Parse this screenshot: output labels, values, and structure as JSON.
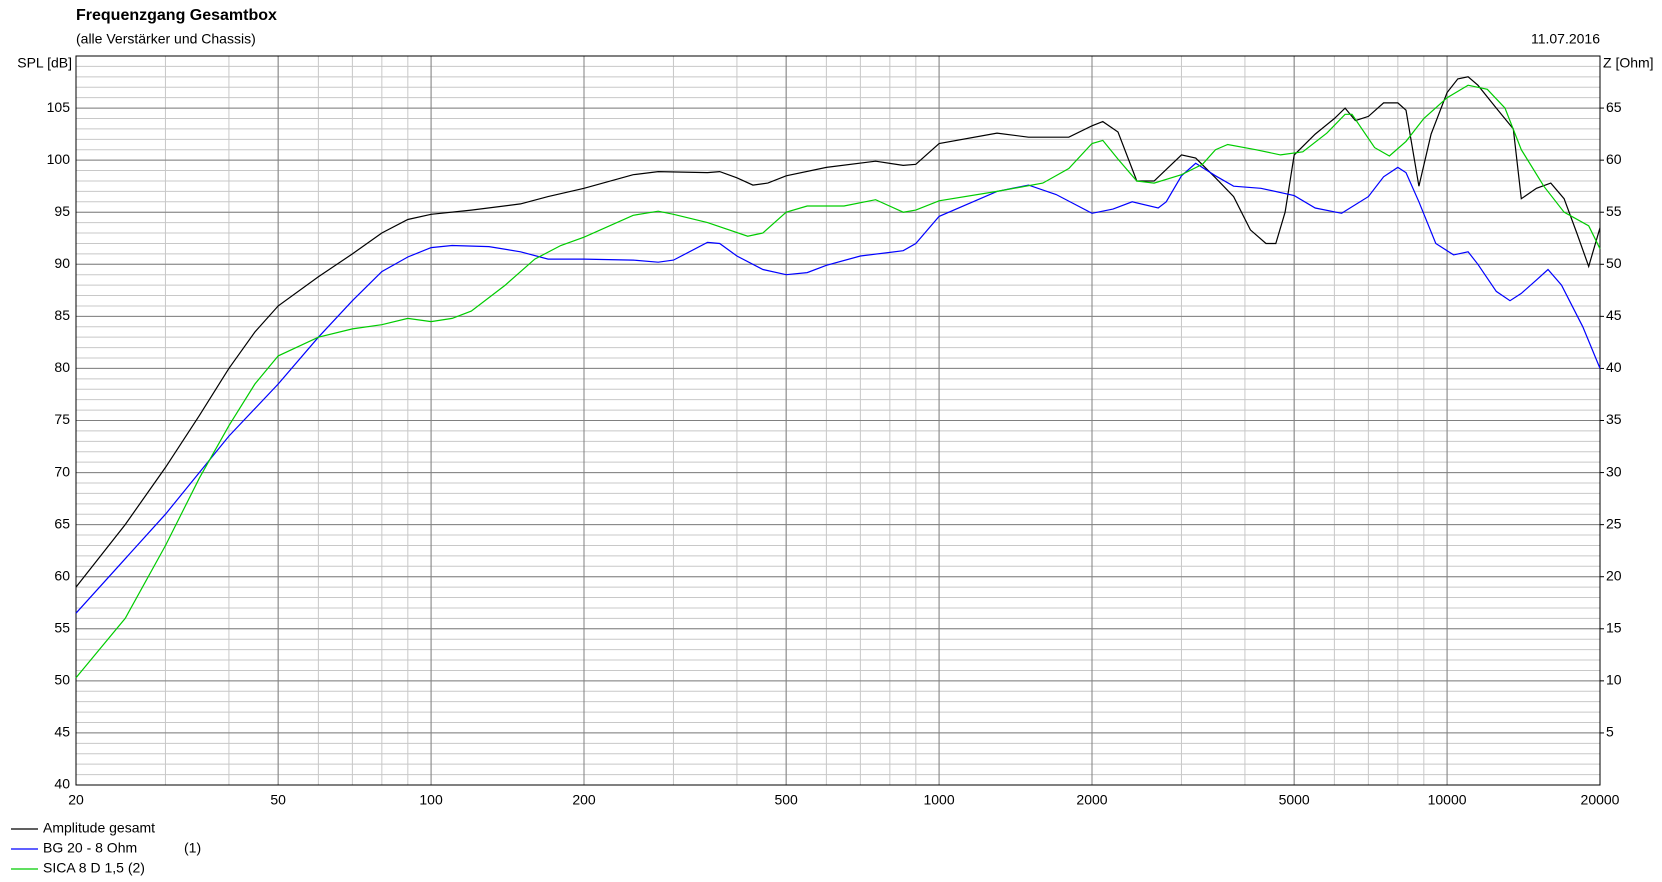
{
  "chart_data": {
    "type": "line",
    "title": "Frequenzgang Gesamtbox",
    "subtitle": "(alle Verstärker und Chassis)",
    "date": "11.07.2016",
    "y_label": "SPL [dB]",
    "y2_label": "Z [Ohm]",
    "log_x": true,
    "grid": true,
    "xlim": [
      20,
      20000
    ],
    "xticks": [
      20,
      50,
      100,
      200,
      500,
      1000,
      2000,
      5000,
      10000,
      20000
    ],
    "ylim": [
      40,
      110
    ],
    "yticks": [
      40,
      45,
      50,
      55,
      60,
      65,
      70,
      75,
      80,
      85,
      90,
      95,
      100,
      105
    ],
    "y2lim": [
      0,
      70
    ],
    "y2ticks": [
      5,
      10,
      15,
      20,
      25,
      30,
      35,
      40,
      45,
      50,
      55,
      60,
      65
    ],
    "series": [
      {
        "name": "Amplitude gesamt",
        "color": "#000000",
        "x": [
          20,
          25,
          30,
          35,
          40,
          45,
          50,
          60,
          70,
          80,
          90,
          100,
          120,
          150,
          170,
          200,
          250,
          280,
          350,
          370,
          400,
          430,
          460,
          500,
          600,
          750,
          850,
          900,
          1000,
          1300,
          1500,
          1800,
          2000,
          2100,
          2250,
          2450,
          2650,
          3000,
          3200,
          3500,
          3800,
          4100,
          4400,
          4600,
          4800,
          5000,
          5500,
          6000,
          6300,
          6600,
          7000,
          7500,
          8000,
          8300,
          8800,
          9300,
          10000,
          10500,
          11000,
          11500,
          12500,
          13500,
          14000,
          15000,
          16000,
          17000,
          18000,
          19000,
          20000
        ],
        "values": [
          59,
          65,
          70.5,
          75.5,
          80,
          83.5,
          86,
          88.8,
          91,
          93,
          94.3,
          94.8,
          95.2,
          95.8,
          96.5,
          97.3,
          98.6,
          98.9,
          98.8,
          98.9,
          98.3,
          97.6,
          97.8,
          98.5,
          99.3,
          99.9,
          99.5,
          99.6,
          101.6,
          102.6,
          102.2,
          102.2,
          103.3,
          103.7,
          102.7,
          98,
          98,
          100.5,
          100.2,
          98.3,
          96.5,
          93.3,
          92,
          92,
          95,
          100.5,
          102.5,
          104,
          105,
          103.8,
          104.2,
          105.5,
          105.5,
          104.8,
          97.5,
          102.5,
          106.5,
          107.8,
          108,
          107.2,
          105,
          103,
          96.3,
          97.3,
          97.8,
          96.3,
          93,
          89.8,
          93.5
        ]
      },
      {
        "name": "BG 20 - 8 Ohm",
        "tag": "(1)",
        "color": "#0000ff",
        "x": [
          20,
          30,
          40,
          50,
          60,
          70,
          80,
          90,
          100,
          110,
          130,
          150,
          170,
          200,
          250,
          280,
          300,
          350,
          370,
          400,
          450,
          500,
          550,
          600,
          700,
          850,
          900,
          1000,
          1300,
          1500,
          1700,
          2000,
          2200,
          2400,
          2700,
          2800,
          3000,
          3200,
          3500,
          3800,
          4300,
          5000,
          5500,
          6200,
          7000,
          7500,
          8000,
          8300,
          8800,
          9500,
          10300,
          11000,
          11500,
          12500,
          13300,
          14000,
          15000,
          15800,
          16800,
          18500,
          20000
        ],
        "values": [
          56.5,
          66,
          73.5,
          78.5,
          83,
          86.5,
          89.3,
          90.7,
          91.6,
          91.8,
          91.7,
          91.2,
          90.5,
          90.5,
          90.4,
          90.2,
          90.4,
          92.1,
          92,
          90.8,
          89.5,
          89,
          89.2,
          89.9,
          90.8,
          91.3,
          92,
          94.6,
          97,
          97.6,
          96.7,
          94.9,
          95.3,
          96,
          95.4,
          96,
          98.5,
          99.7,
          98.5,
          97.5,
          97.3,
          96.6,
          95.4,
          94.9,
          96.5,
          98.4,
          99.3,
          98.8,
          96,
          92,
          90.9,
          91.2,
          90,
          87.4,
          86.5,
          87.2,
          88.5,
          89.5,
          88,
          84,
          80
        ]
      },
      {
        "name": "SICA 8 D 1,5 (2)",
        "color": "#00cc00",
        "x": [
          20,
          25,
          30,
          35,
          40,
          45,
          50,
          60,
          70,
          80,
          90,
          100,
          110,
          120,
          140,
          160,
          180,
          200,
          250,
          280,
          300,
          350,
          420,
          450,
          500,
          550,
          650,
          750,
          850,
          900,
          1000,
          1300,
          1600,
          1800,
          2000,
          2100,
          2250,
          2450,
          2650,
          3000,
          3300,
          3500,
          3700,
          4200,
          4700,
          5200,
          5800,
          6300,
          6500,
          7200,
          7700,
          8300,
          9000,
          10000,
          11000,
          12000,
          13000,
          14000,
          15500,
          17000,
          19000,
          20000
        ],
        "values": [
          50.3,
          56,
          63,
          69.5,
          74.5,
          78.5,
          81.2,
          83,
          83.8,
          84.2,
          84.8,
          84.5,
          84.8,
          85.5,
          88,
          90.5,
          91.8,
          92.6,
          94.7,
          95.1,
          94.8,
          94,
          92.7,
          93,
          95,
          95.6,
          95.6,
          96.2,
          95,
          95.2,
          96.1,
          97,
          97.8,
          99.2,
          101.6,
          101.9,
          100.1,
          98,
          97.8,
          98.6,
          99.6,
          101,
          101.5,
          101,
          100.5,
          100.8,
          102.6,
          104.4,
          104.4,
          101.2,
          100.4,
          101.8,
          104,
          106,
          107.2,
          106.8,
          105,
          101,
          97.5,
          95,
          93.7,
          91.5
        ]
      }
    ]
  }
}
